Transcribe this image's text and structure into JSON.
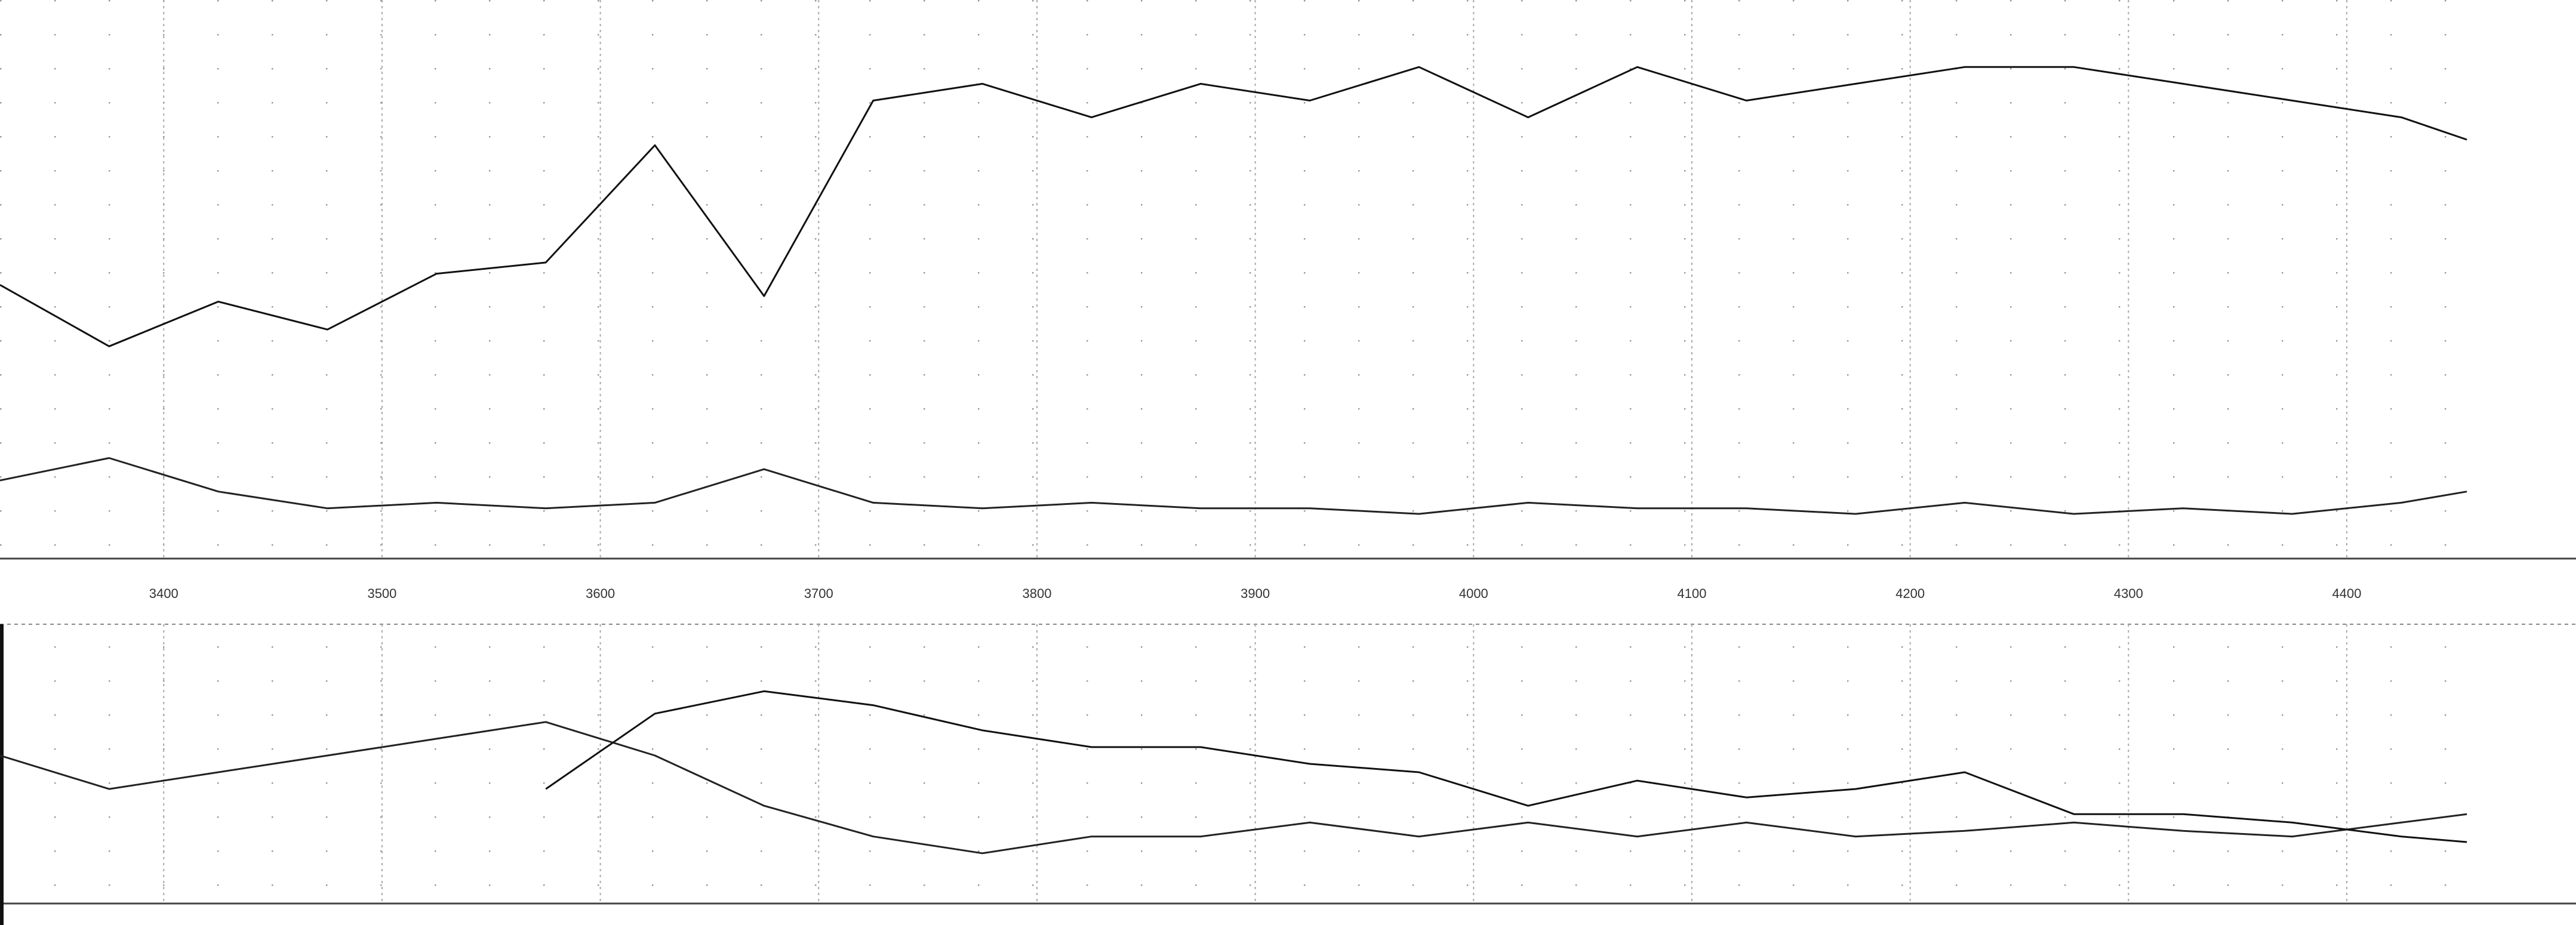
{
  "chart_data": [
    {
      "type": "line",
      "grid": true,
      "xlim": [
        3325,
        4505
      ],
      "ylim": [
        0,
        100
      ],
      "xticks": [
        3400,
        3500,
        3600,
        3700,
        3800,
        3900,
        4000,
        4100,
        4200,
        4300,
        4400
      ],
      "x": [
        3325,
        3375,
        3425,
        3475,
        3525,
        3575,
        3625,
        3675,
        3725,
        3775,
        3825,
        3875,
        3925,
        3975,
        4025,
        4075,
        4125,
        4175,
        4225,
        4275,
        4325,
        4375,
        4425,
        4455
      ],
      "series": [
        {
          "color": "#111111",
          "values": [
            49,
            38,
            46,
            41,
            51,
            53,
            74,
            47,
            82,
            85,
            79,
            85,
            82,
            88,
            79,
            88,
            82,
            85,
            88,
            88,
            85,
            82,
            79,
            75
          ]
        },
        {
          "color": "#222222",
          "values": [
            14,
            18,
            12,
            9,
            10,
            9,
            10,
            16,
            10,
            9,
            10,
            9,
            9,
            8,
            10,
            9,
            9,
            8,
            10,
            8,
            9,
            8,
            10,
            12
          ]
        }
      ]
    },
    {
      "type": "line",
      "grid": true,
      "xlim": [
        3325,
        4505
      ],
      "ylim": [
        0,
        100
      ],
      "xticks": [
        3400,
        3500,
        3600,
        3700,
        3800,
        3900,
        4000,
        4100,
        4200,
        4300,
        4400
      ],
      "x": [
        3325,
        3375,
        3425,
        3475,
        3525,
        3575,
        3625,
        3675,
        3725,
        3775,
        3825,
        3875,
        3925,
        3975,
        4025,
        4075,
        4125,
        4175,
        4225,
        4275,
        4325,
        4375,
        4425,
        4455
      ],
      "series": [
        {
          "color": "#222222",
          "values": [
            53,
            41,
            47,
            53,
            59,
            65,
            53,
            35,
            24,
            18,
            24,
            24,
            29,
            24,
            29,
            24,
            29,
            24,
            26,
            29,
            26,
            24,
            29,
            32
          ]
        },
        {
          "color": "#111111",
          "values": [
            null,
            null,
            null,
            null,
            null,
            41,
            68,
            76,
            71,
            62,
            56,
            56,
            50,
            47,
            35,
            44,
            38,
            41,
            47,
            32,
            32,
            29,
            24,
            22
          ]
        }
      ]
    }
  ]
}
